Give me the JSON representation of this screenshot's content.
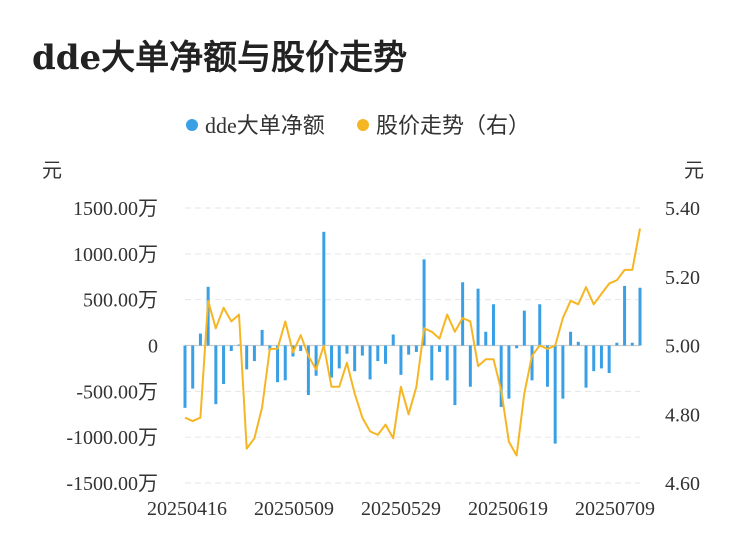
{
  "title": "dde大单净额与股价走势",
  "chart_data": {
    "type": "bar+line",
    "legend": [
      "dde大单净额",
      "股价走势（右）"
    ],
    "legend_position": "top-center",
    "left_unit": "元",
    "right_unit": "元",
    "left_ticks": [
      "1500.00万",
      "1000.00万",
      "500.00万",
      "0",
      "-500.00万",
      "-1000.00万",
      "-1500.00万"
    ],
    "right_ticks": [
      "5.40",
      "5.20",
      "5.00",
      "4.80",
      "4.60"
    ],
    "x_ticks": [
      "20250416",
      "20250509",
      "20250529",
      "20250619",
      "20250709"
    ],
    "ylim_left": [
      -1500,
      1500
    ],
    "ylim_right": [
      4.6,
      5.4
    ],
    "left_value_unit": "万元",
    "grid": "horizontal-dashed",
    "colors": {
      "bar": "#3aa0e6",
      "line": "#f6b624"
    },
    "series": [
      {
        "name": "dde大单净额",
        "type": "bar",
        "values": [
          -680,
          -470,
          130,
          640,
          -640,
          -420,
          -60,
          10,
          -260,
          -170,
          170,
          -50,
          -400,
          -380,
          -120,
          -60,
          -540,
          -330,
          1240,
          -350,
          -250,
          -90,
          -280,
          -110,
          -370,
          -170,
          -200,
          120,
          -320,
          -100,
          -70,
          940,
          -380,
          -70,
          -380,
          -650,
          690,
          -450,
          620,
          150,
          450,
          -670,
          -580,
          -30,
          380,
          -380,
          450,
          -450,
          -1070,
          -580,
          150,
          40,
          -460,
          -280,
          -250,
          -300,
          30,
          650,
          30,
          630
        ]
      },
      {
        "name": "股价走势（右）",
        "type": "line",
        "values": [
          4.79,
          4.78,
          4.79,
          5.13,
          5.05,
          5.11,
          5.07,
          5.09,
          4.7,
          4.73,
          4.82,
          4.99,
          4.99,
          5.07,
          4.98,
          5.03,
          4.97,
          4.93,
          5.0,
          4.88,
          4.88,
          4.95,
          4.86,
          4.79,
          4.75,
          4.74,
          4.77,
          4.73,
          4.88,
          4.8,
          4.88,
          5.05,
          5.04,
          5.02,
          5.09,
          5.04,
          5.08,
          5.07,
          4.94,
          4.96,
          4.96,
          4.87,
          4.72,
          4.68,
          4.86,
          4.97,
          5.0,
          4.99,
          5.0,
          5.08,
          5.13,
          5.12,
          5.17,
          5.12,
          5.15,
          5.18,
          5.19,
          5.22,
          5.22,
          5.34
        ]
      }
    ]
  }
}
